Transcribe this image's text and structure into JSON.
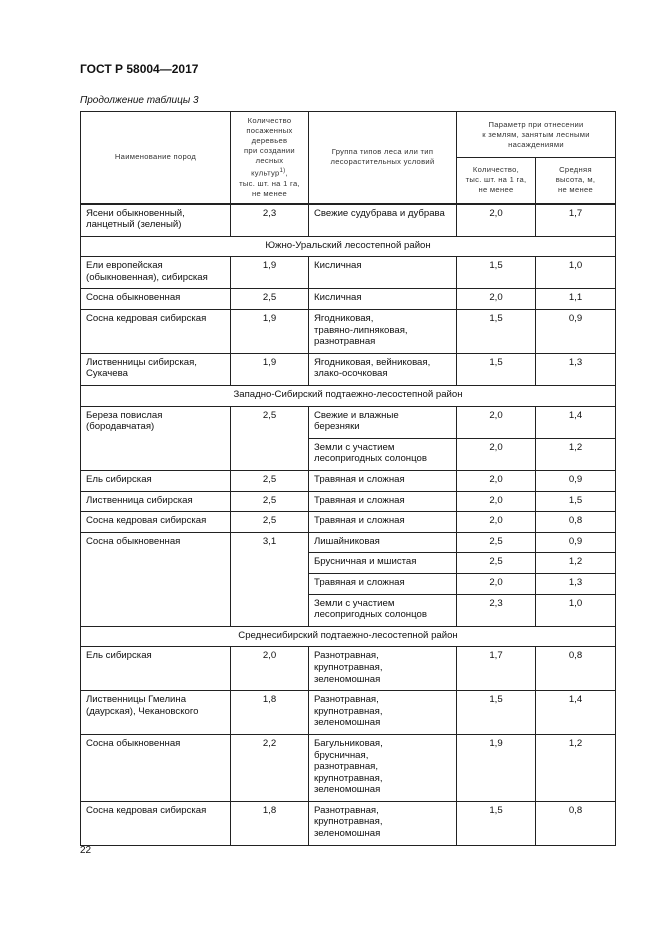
{
  "header": {
    "doc_title": "ГОСТ Р 58004—2017",
    "caption": "Продолжение таблицы 3"
  },
  "table": {
    "columns": {
      "name": "Наименование пород",
      "count": "Количество\nпосаженных\nдеревьев\nпри создании\nлесных\nкультур",
      "count_sup": "1)",
      "count_tail": ",\nтыс. шт. на 1 га,\nне менее",
      "group": "Группа типов леса или тип\nлесорастительных условий",
      "param": "Параметр при отнесении\nк землям, занятым лесными\nнасаждениями",
      "param_qty": "Количество,\nтыс. шт. на 1 га,\nне менее",
      "param_height": "Средняя\nвысота, м,\nне менее"
    },
    "rows": [
      {
        "type": "entry",
        "name": "Ясени обыкновенный,\nланцетный (зеленый)",
        "count": "2,3",
        "sub": [
          {
            "group": "Свежие судубрава и дубрава",
            "qty": "2,0",
            "height": "1,7"
          }
        ]
      },
      {
        "type": "section",
        "title": "Южно-Уральский лесостепной район"
      },
      {
        "type": "entry",
        "name": "Ели европейская\n(обыкновенная), сибирская",
        "count": "1,9",
        "sub": [
          {
            "group": "Кисличная",
            "qty": "1,5",
            "height": "1,0"
          }
        ]
      },
      {
        "type": "entry",
        "name": "Сосна обыкновенная",
        "count": "2,5",
        "sub": [
          {
            "group": "Кисличная",
            "qty": "2,0",
            "height": "1,1"
          }
        ]
      },
      {
        "type": "entry",
        "name": "Сосна кедровая сибирская",
        "count": "1,9",
        "sub": [
          {
            "group": "Ягодниковая,\nтравяно-липняковая,\nразнотравная",
            "qty": "1,5",
            "height": "0,9"
          }
        ]
      },
      {
        "type": "entry",
        "name": "Лиственницы сибирская,\nСукачева",
        "count": "1,9",
        "sub": [
          {
            "group": "Ягодниковая, вейниковая,\nзлако-осочковая",
            "qty": "1,5",
            "height": "1,3"
          }
        ]
      },
      {
        "type": "section",
        "title": "Западно-Сибирский подтаежно-лесостепной район"
      },
      {
        "type": "entry",
        "name": "Береза повислая\n(бородавчатая)",
        "count": "2,5",
        "sub": [
          {
            "group": "Свежие и влажные\nберезняки",
            "qty": "2,0",
            "height": "1,4"
          },
          {
            "group": "Земли с участием\nлесопригодных солонцов",
            "qty": "2,0",
            "height": "1,2"
          }
        ]
      },
      {
        "type": "entry",
        "name": "Ель сибирская",
        "count": "2,5",
        "sub": [
          {
            "group": "Травяная и сложная",
            "qty": "2,0",
            "height": "0,9"
          }
        ]
      },
      {
        "type": "entry",
        "name": "Лиственница сибирская",
        "count": "2,5",
        "sub": [
          {
            "group": "Травяная и сложная",
            "qty": "2,0",
            "height": "1,5"
          }
        ]
      },
      {
        "type": "entry",
        "name": "Сосна кедровая сибирская",
        "count": "2,5",
        "sub": [
          {
            "group": "Травяная и сложная",
            "qty": "2,0",
            "height": "0,8"
          }
        ]
      },
      {
        "type": "entry",
        "name": "Сосна обыкновенная",
        "count": "3,1",
        "sub": [
          {
            "group": "Лишайниковая",
            "qty": "2,5",
            "height": "0,9"
          },
          {
            "group": "Брусничная и мшистая",
            "qty": "2,5",
            "height": "1,2"
          },
          {
            "group": "Травяная и сложная",
            "qty": "2,0",
            "height": "1,3"
          },
          {
            "group": "Земли с участием\nлесопригодных солонцов",
            "qty": "2,3",
            "height": "1,0"
          }
        ]
      },
      {
        "type": "section",
        "title": "Среднесибирский подтаежно-лесостепной район"
      },
      {
        "type": "entry",
        "name": "Ель сибирская",
        "count": "2,0",
        "sub": [
          {
            "group": "Разнотравная,\nкрупнотравная,\nзеленомошная",
            "qty": "1,7",
            "height": "0,8"
          }
        ]
      },
      {
        "type": "entry",
        "name": "Лиственницы Гмелина\n(даурская), Чекановского",
        "count": "1,8",
        "sub": [
          {
            "group": "Разнотравная,\nкрупнотравная,\nзеленомошная",
            "qty": "1,5",
            "height": "1,4"
          }
        ]
      },
      {
        "type": "entry",
        "name": "Сосна обыкновенная",
        "count": "2,2",
        "sub": [
          {
            "group": "Багульниковая,\nбрусничная,\nразнотравная,\nкрупнотравная,\nзеленомошная",
            "qty": "1,9",
            "height": "1,2"
          }
        ]
      },
      {
        "type": "entry",
        "name": "Сосна кедровая сибирская",
        "count": "1,8",
        "sub": [
          {
            "group": "Разнотравная,\nкрупнотравная,\nзеленомошная",
            "qty": "1,5",
            "height": "0,8"
          }
        ]
      }
    ]
  },
  "footer": {
    "page_number": "22"
  }
}
